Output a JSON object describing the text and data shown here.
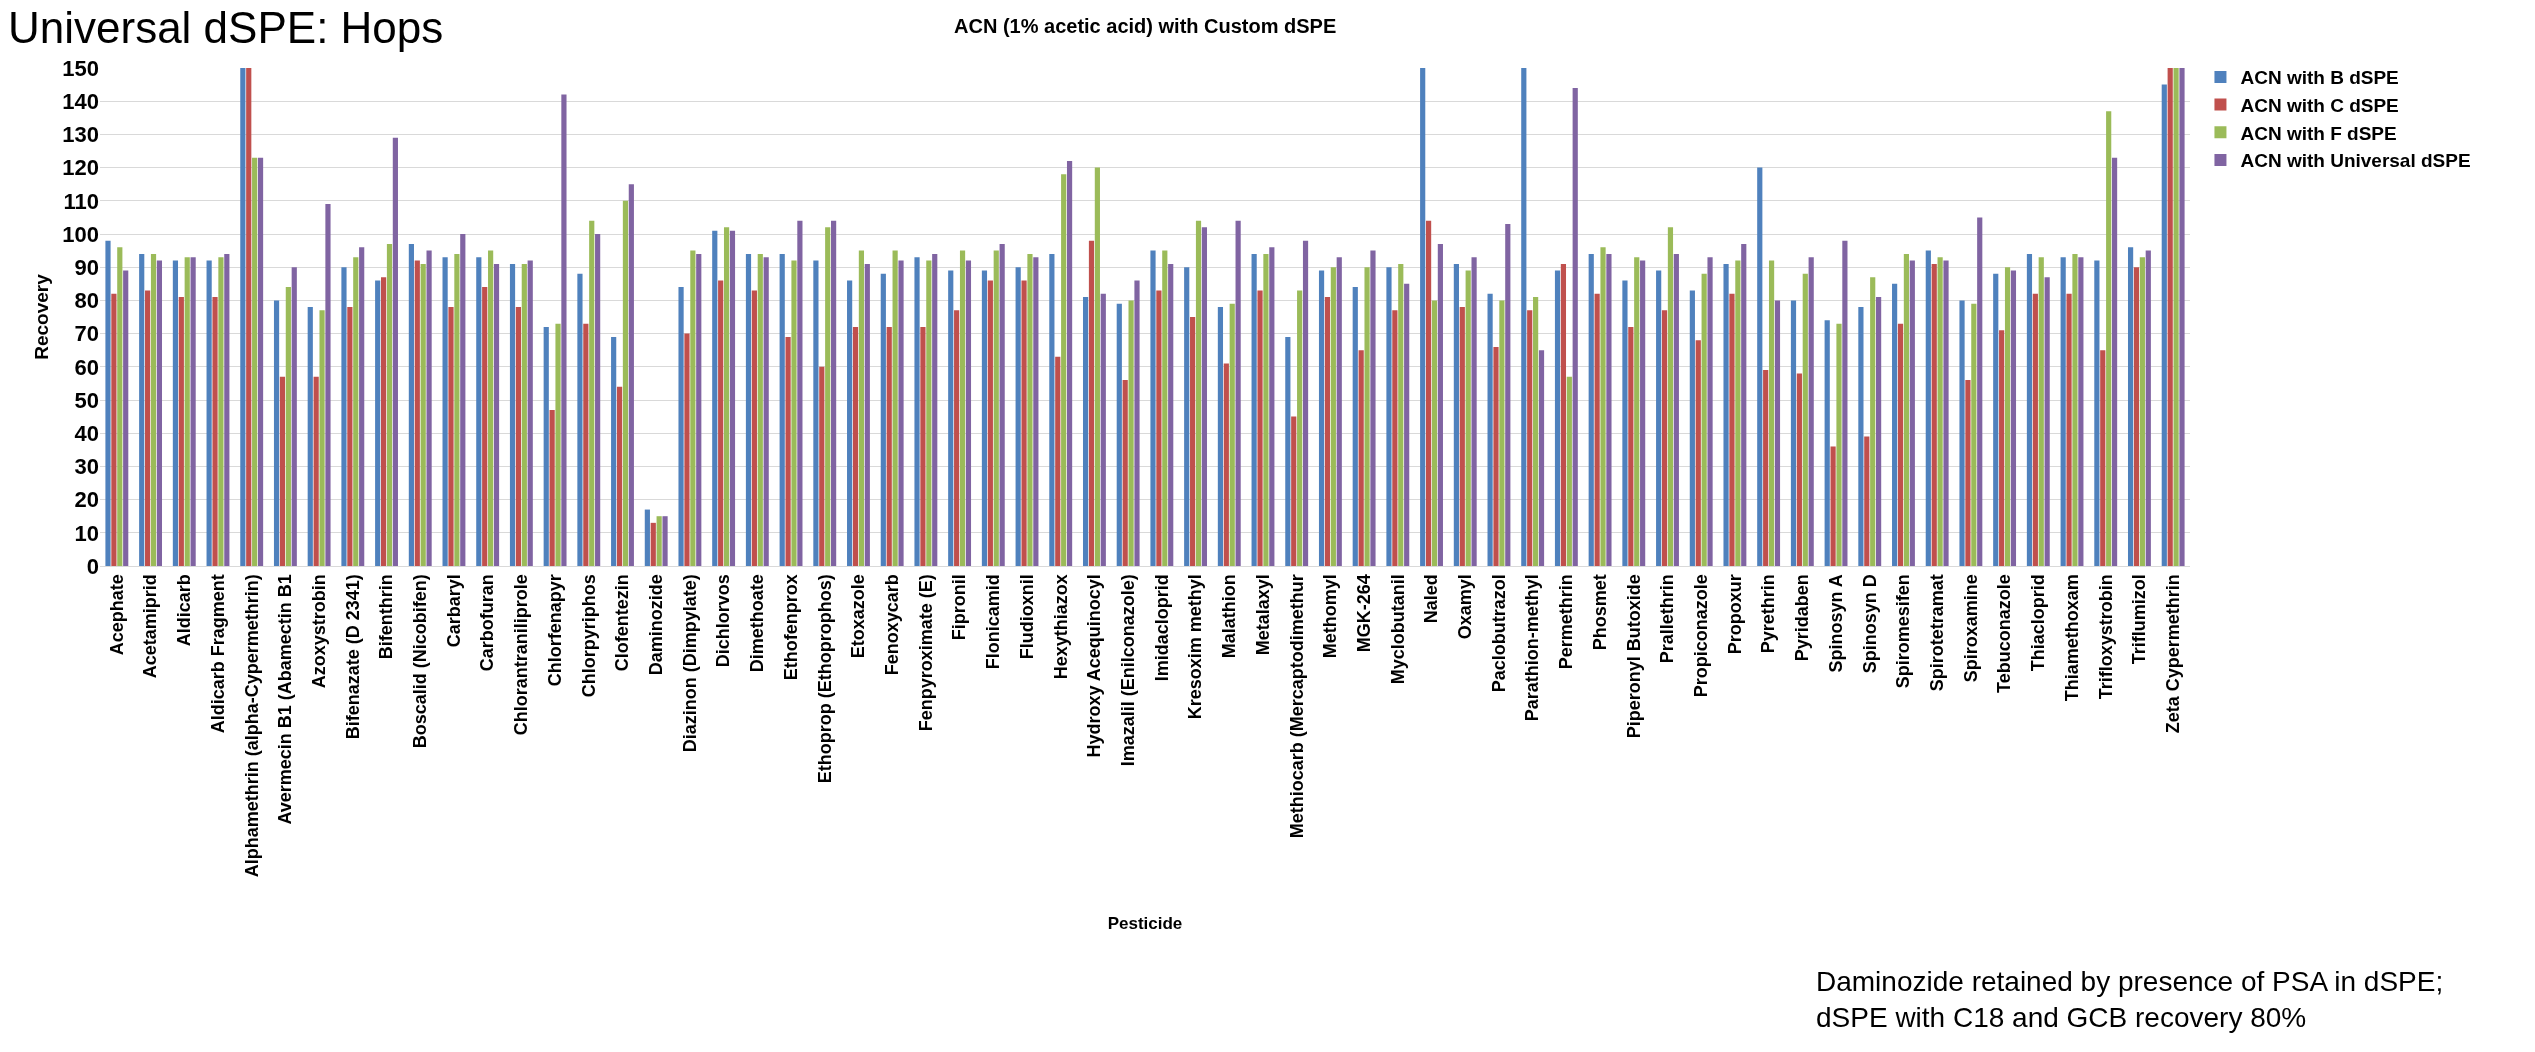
{
  "chart_data": {
    "type": "bar",
    "title": "Universal dSPE: Hops",
    "subtitle": "ACN (1% acetic acid) with Custom dSPE",
    "xlabel": "Pesticide",
    "ylabel": "Recovery",
    "categories": [
      "Acephate",
      "Acetamiprid",
      "Aldicarb",
      "Aldicarb Fragment",
      "Alphamethrin (alpha-Cypermethrin)",
      "Avermecin B1 (Abamectin B1",
      "Azoxystrobin",
      "Bifenazate (D 2341)",
      "Bifenthrin",
      "Boscalid (Nicobifen)",
      "Carbaryl",
      "Carbofuran",
      "Chlorantraniliprole",
      "Chlorfenapyr",
      "Chlorpyriphos",
      "Clofentezin",
      "Daminozide",
      "Diazinon (Dimpylate)",
      "Dichlorvos",
      "Dimethoate",
      "Ethofenprox",
      "Ethoprop (Ethoprophos)",
      "Etoxazole",
      "Fenoxycarb",
      "Fenpyroximate (E)",
      "Fipronil",
      "Flonicamid",
      "Fludioxnil",
      "Hexythiazox",
      "Hydroxy Acequinocyl",
      "Imazalil (Enilconazole)",
      "Imidacloprid",
      "Kresoxim methyl",
      "Malathion",
      "Metalaxyl",
      "Methiocarb (Mercaptodimethur",
      "Methomyl",
      "MGK-264",
      "Myclobutanil",
      "Naled",
      "Oxamyl",
      "Paclobutrazol",
      "Parathion-methyl",
      "Permethrin",
      "Phosmet",
      "Piperonyl Butoxide",
      "Prallethrin",
      "Propiconazole",
      "Propoxur",
      "Pyrethrin",
      "Pyridaben",
      "Spinosyn A",
      "Spinosyn D",
      "Spiromesifen",
      "Spirotetramat",
      "Spiroxamine",
      "Tebuconazole",
      "Thiacloprid",
      "Thiamethoxam",
      "Trifloxystrobin",
      "Triflumizol",
      "Zeta Cypermethrin"
    ],
    "series": [
      {
        "name": "ACN with B dSPE",
        "color": "#4f81bd",
        "values": [
          98,
          94,
          92,
          92,
          150,
          80,
          78,
          90,
          86,
          97,
          93,
          93,
          91,
          72,
          88,
          69,
          17,
          84,
          101,
          94,
          94,
          92,
          86,
          88,
          93,
          89,
          89,
          90,
          94,
          81,
          79,
          95,
          90,
          78,
          94,
          69,
          89,
          84,
          90,
          150,
          91,
          82,
          150,
          89,
          94,
          86,
          89,
          83,
          91,
          120,
          80,
          74,
          78,
          85,
          95,
          80,
          88,
          94,
          93,
          92,
          96,
          145
        ]
      },
      {
        "name": "ACN with C dSPE",
        "color": "#c0504d",
        "values": [
          82,
          83,
          81,
          81,
          150,
          57,
          57,
          78,
          87,
          92,
          78,
          84,
          78,
          47,
          73,
          54,
          13,
          70,
          86,
          83,
          69,
          60,
          72,
          72,
          72,
          77,
          86,
          86,
          63,
          98,
          56,
          83,
          75,
          61,
          83,
          45,
          81,
          65,
          77,
          104,
          78,
          66,
          77,
          91,
          82,
          72,
          77,
          68,
          82,
          59,
          58,
          36,
          39,
          73,
          91,
          56,
          71,
          82,
          82,
          65,
          90,
          150
        ]
      },
      {
        "name": "ACN with F dSPE",
        "color": "#9bbb59",
        "values": [
          96,
          94,
          93,
          93,
          123,
          84,
          77,
          93,
          97,
          91,
          94,
          95,
          91,
          73,
          104,
          110,
          15,
          95,
          102,
          94,
          92,
          102,
          95,
          95,
          92,
          95,
          95,
          94,
          118,
          120,
          80,
          95,
          104,
          79,
          94,
          83,
          90,
          90,
          91,
          80,
          89,
          80,
          81,
          57,
          96,
          93,
          102,
          88,
          92,
          92,
          88,
          73,
          87,
          94,
          93,
          79,
          90,
          93,
          94,
          137,
          93,
          150
        ]
      },
      {
        "name": "ACN with Universal dSPE",
        "color": "#8064a2",
        "values": [
          89,
          92,
          93,
          94,
          123,
          90,
          109,
          96,
          129,
          95,
          100,
          91,
          92,
          142,
          100,
          115,
          15,
          94,
          101,
          93,
          104,
          104,
          91,
          92,
          94,
          92,
          97,
          93,
          122,
          82,
          86,
          91,
          102,
          104,
          96,
          98,
          93,
          95,
          85,
          97,
          93,
          103,
          65,
          144,
          94,
          92,
          94,
          93,
          97,
          80,
          93,
          98,
          81,
          92,
          92,
          105,
          89,
          87,
          93,
          123,
          95,
          150
        ]
      }
    ],
    "ylim": [
      0,
      150
    ],
    "yticks": [
      0,
      10,
      20,
      30,
      40,
      50,
      60,
      70,
      80,
      90,
      100,
      110,
      120,
      130,
      140,
      150
    ],
    "grid": "y",
    "legend": "top right",
    "annotations": [
      "Daminozide retained by presence of PSA in dSPE;\ndSPE with C18 and GCB recovery 80%"
    ]
  }
}
